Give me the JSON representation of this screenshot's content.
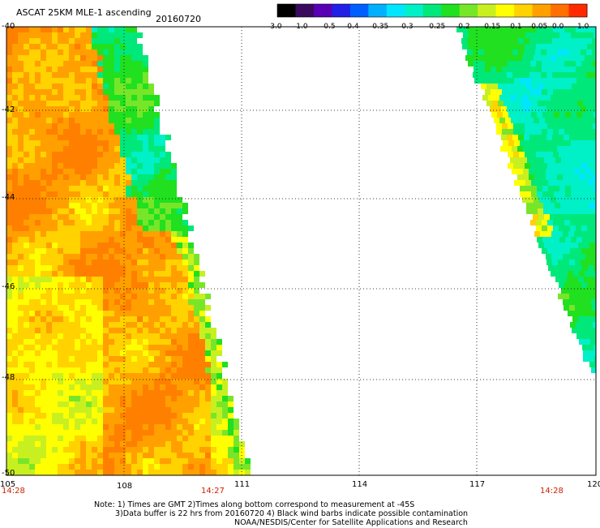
{
  "header": {
    "title": "ASCAT 25KM MLE-1 ascending",
    "date": "20160720"
  },
  "colorbar": {
    "labels": [
      "-3.0",
      "-1.0",
      "-0.5",
      "-0.4",
      "-0.35",
      "-0.3",
      "-0.25",
      "-0.2",
      "-0.15",
      "-0.1",
      "-0.05",
      "0.0",
      "1.0"
    ],
    "colors": [
      "#000000",
      "#3a0a5e",
      "#5a00b4",
      "#2020e6",
      "#0060ff",
      "#00b0ff",
      "#00e6ff",
      "#00f0c8",
      "#00e87a",
      "#20e020",
      "#78e628",
      "#c8f020",
      "#ffff00",
      "#ffd200",
      "#ffa000",
      "#ff7000",
      "#ff2a00"
    ]
  },
  "map": {
    "lon_ticks": [
      "105",
      "108",
      "111",
      "114",
      "117",
      "120"
    ],
    "lat_ticks": [
      "-40",
      "-42",
      "-44",
      "-46",
      "-48",
      "-50"
    ],
    "time_labels": [
      "14:28",
      "14:27",
      "14:28"
    ]
  },
  "notes": {
    "line1": "Note: 1) Times are GMT 2)Times along bottom correspond to measurement at -45S",
    "line2": "3)Data buffer is 22 hrs from 20160720 4) Black wind barbs indicate possible contamination",
    "line3": "NOAA/NESDIS/Center for Satellite Applications and Research"
  }
}
